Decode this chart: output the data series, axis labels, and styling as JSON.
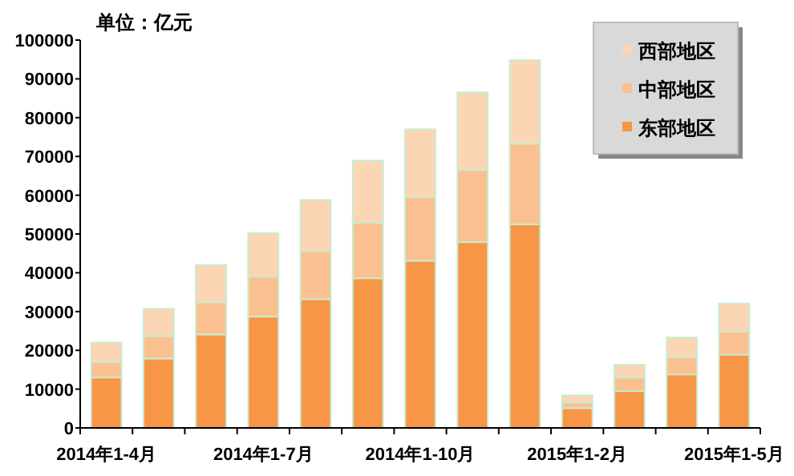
{
  "chart_data": {
    "type": "bar",
    "stacked": true,
    "title": "单位：亿元",
    "categories": [
      "2014年1-4月",
      null,
      null,
      "2014年1-7月",
      null,
      null,
      "2014年1-10月",
      null,
      null,
      "2015年1-2月",
      null,
      null,
      "2015年1-5月"
    ],
    "series": [
      {
        "name": "东部地区",
        "color": "#f79646",
        "values": [
          13000,
          17900,
          24100,
          28700,
          33200,
          38600,
          43100,
          47900,
          52500,
          5100,
          9500,
          13800,
          18900
        ]
      },
      {
        "name": "中部地区",
        "color": "#fac090",
        "values": [
          4000,
          5800,
          8300,
          10300,
          12400,
          14300,
          16400,
          18600,
          20800,
          1500,
          3500,
          4400,
          5900
        ]
      },
      {
        "name": "西部地区",
        "color": "#fcd5b5",
        "values": [
          5000,
          7000,
          9600,
          11200,
          13200,
          16000,
          17500,
          20000,
          21500,
          1800,
          3300,
          5100,
          7300
        ]
      }
    ],
    "ylim": [
      0,
      100000
    ],
    "yticks": [
      0,
      10000,
      20000,
      30000,
      40000,
      50000,
      60000,
      70000,
      80000,
      90000,
      100000
    ],
    "grid": false,
    "legend": "top right"
  }
}
